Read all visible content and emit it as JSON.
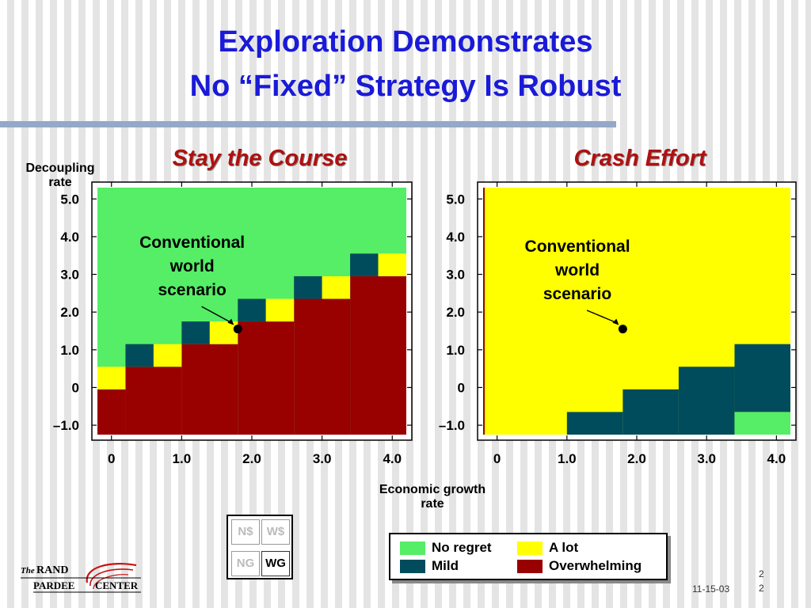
{
  "slide": {
    "title_line_1": "Exploration Demonstrates",
    "title_line_2": "No “Fixed” Strategy Is Robust",
    "ylabel_line_1": "Decoupling",
    "ylabel_line_2": "rate",
    "xlabel_line_1": "Economic growth",
    "xlabel_line_2": "rate",
    "date": "11-15-03",
    "page_line_1": "2",
    "page_line_2": "2",
    "logo": {
      "text_the": "The",
      "text_rand": "RAND",
      "text_pardee": "PARDEE",
      "text_center": "CENTER"
    }
  },
  "scenario_box": {
    "cells": [
      {
        "label": "N$",
        "active": false
      },
      {
        "label": "W$",
        "active": false
      },
      {
        "label": "NG",
        "active": false
      },
      {
        "label": "WG",
        "active": true
      }
    ]
  },
  "legend": {
    "items": [
      {
        "label": "No regret",
        "color": "#55ee66"
      },
      {
        "label": "A lot",
        "color": "#ffff00"
      },
      {
        "label": "Mild",
        "color": "#004c5c"
      },
      {
        "label": "Overwhelming",
        "color": "#990000"
      }
    ]
  },
  "chart_data": [
    {
      "type": "heatmap",
      "title": "Stay the Course",
      "xlabel": "Economic growth rate",
      "ylabel": "Decoupling rate",
      "xlim": [
        -0.2,
        4.2
      ],
      "ylim": [
        -1.25,
        5.3
      ],
      "xticks": [
        0,
        1.0,
        2.0,
        3.0,
        4.0
      ],
      "xtick_labels": [
        "0",
        "1.0",
        "2.0",
        "3.0",
        "4.0"
      ],
      "yticks": [
        -1.0,
        0,
        1.0,
        2.0,
        3.0,
        4.0,
        5.0
      ],
      "ytick_labels": [
        "–1.0",
        "0",
        "1.0",
        "2.0",
        "3.0",
        "4.0",
        "5.0"
      ],
      "background": "No regret",
      "regions": [
        {
          "category": "Overwhelming",
          "x": [
            -0.2,
            0.2
          ],
          "y": [
            -1.25,
            -0.05
          ]
        },
        {
          "category": "Overwhelming",
          "x": [
            0.2,
            1.0
          ],
          "y": [
            -1.25,
            0.55
          ]
        },
        {
          "category": "Overwhelming",
          "x": [
            1.0,
            1.8
          ],
          "y": [
            -1.25,
            1.15
          ]
        },
        {
          "category": "Overwhelming",
          "x": [
            1.8,
            2.6
          ],
          "y": [
            -1.25,
            1.75
          ]
        },
        {
          "category": "Overwhelming",
          "x": [
            2.6,
            3.4
          ],
          "y": [
            -1.25,
            2.35
          ]
        },
        {
          "category": "Overwhelming",
          "x": [
            3.4,
            4.2
          ],
          "y": [
            -1.25,
            2.95
          ]
        },
        {
          "category": "A lot",
          "x": [
            -0.2,
            0.2
          ],
          "y": [
            -0.05,
            0.55
          ]
        },
        {
          "category": "Mild",
          "x": [
            0.2,
            0.6
          ],
          "y": [
            0.55,
            1.15
          ]
        },
        {
          "category": "A lot",
          "x": [
            0.6,
            1.0
          ],
          "y": [
            0.55,
            1.15
          ]
        },
        {
          "category": "Mild",
          "x": [
            1.0,
            1.4
          ],
          "y": [
            1.15,
            1.75
          ]
        },
        {
          "category": "A lot",
          "x": [
            1.4,
            1.8
          ],
          "y": [
            1.15,
            1.75
          ]
        },
        {
          "category": "Mild",
          "x": [
            1.8,
            2.2
          ],
          "y": [
            1.75,
            2.35
          ]
        },
        {
          "category": "A lot",
          "x": [
            2.2,
            2.6
          ],
          "y": [
            1.75,
            2.35
          ]
        },
        {
          "category": "Mild",
          "x": [
            2.6,
            3.0
          ],
          "y": [
            2.35,
            2.95
          ]
        },
        {
          "category": "A lot",
          "x": [
            3.0,
            3.4
          ],
          "y": [
            2.35,
            2.95
          ]
        },
        {
          "category": "Mild",
          "x": [
            3.4,
            3.8
          ],
          "y": [
            2.95,
            3.55
          ]
        },
        {
          "category": "A lot",
          "x": [
            3.8,
            4.2
          ],
          "y": [
            2.95,
            3.55
          ]
        }
      ],
      "point": {
        "x": 1.8,
        "y": 1.55
      },
      "annotation": {
        "lines": [
          "Conventional",
          "world",
          "scenario"
        ],
        "x": 1.15,
        "y": 3.7
      }
    },
    {
      "type": "heatmap",
      "title": "Crash Effort",
      "xlabel": "Economic growth rate",
      "ylabel": "Decoupling rate",
      "xlim": [
        -0.2,
        4.2
      ],
      "ylim": [
        -1.25,
        5.3
      ],
      "xticks": [
        0,
        1.0,
        2.0,
        3.0,
        4.0
      ],
      "xtick_labels": [
        "0",
        "1.0",
        "2.0",
        "3.0",
        "4.0"
      ],
      "yticks": [
        -1.0,
        0,
        1.0,
        2.0,
        3.0,
        4.0,
        5.0
      ],
      "ytick_labels": [
        "–1.0",
        "0",
        "1.0",
        "2.0",
        "3.0",
        "4.0",
        "5.0"
      ],
      "background": "A lot",
      "regions": [
        {
          "category": "Mild",
          "x": [
            1.0,
            1.8
          ],
          "y": [
            -1.25,
            -0.65
          ]
        },
        {
          "category": "Mild",
          "x": [
            1.8,
            2.6
          ],
          "y": [
            -1.25,
            -0.05
          ]
        },
        {
          "category": "Mild",
          "x": [
            2.6,
            3.4
          ],
          "y": [
            -1.25,
            0.55
          ]
        },
        {
          "category": "Mild",
          "x": [
            3.4,
            4.2
          ],
          "y": [
            -0.65,
            1.15
          ]
        },
        {
          "category": "No regret",
          "x": [
            3.4,
            4.2
          ],
          "y": [
            -1.25,
            -0.65
          ]
        }
      ],
      "point": {
        "x": 1.8,
        "y": 1.55
      },
      "annotation": {
        "lines": [
          "Conventional",
          "world",
          "scenario"
        ],
        "x": 1.15,
        "y": 3.6
      }
    }
  ]
}
